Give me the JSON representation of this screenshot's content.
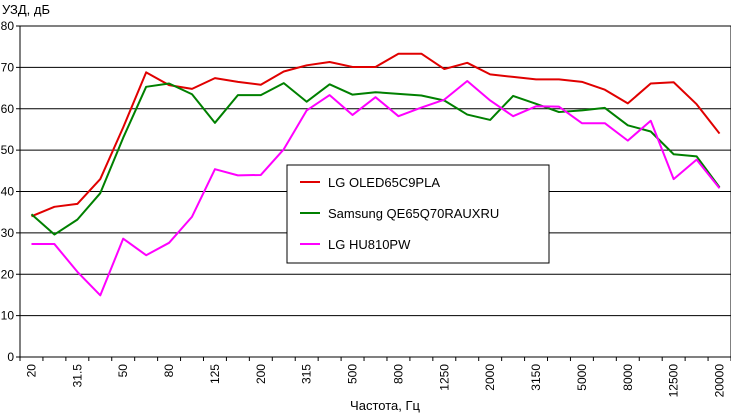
{
  "chart_data": {
    "type": "line",
    "ylabel": "УЗД, дБ",
    "xlabel": "Частота, Гц",
    "ylim": [
      0,
      80
    ],
    "y_ticks": [
      0,
      10,
      20,
      30,
      40,
      50,
      60,
      70,
      80
    ],
    "grid": "horizontal",
    "legend_position": "center",
    "x_tick_labels": [
      "20",
      "31.5",
      "50",
      "80",
      "125",
      "200",
      "315",
      "500",
      "800",
      "1250",
      "2000",
      "3150",
      "5000",
      "8000",
      "12500",
      "20000"
    ],
    "x_values": [
      20,
      25,
      31.5,
      40,
      50,
      63,
      80,
      100,
      125,
      160,
      200,
      250,
      315,
      400,
      500,
      630,
      800,
      1000,
      1250,
      1600,
      2000,
      2500,
      3150,
      4000,
      5000,
      6300,
      8000,
      10000,
      12500,
      16000,
      20000
    ],
    "series": [
      {
        "name": "LG OLED65C9PLA",
        "color": "#e00000",
        "values": [
          34,
          36.3,
          37,
          43,
          55.5,
          68.8,
          65.7,
          64.8,
          67.4,
          66.5,
          65.8,
          69,
          70.5,
          71.3,
          70.1,
          70.1,
          73.3,
          73.3,
          69.6,
          71.1,
          68.3,
          67.7,
          67.1,
          67.1,
          66.5,
          64.6,
          61.3,
          66.1,
          66.4,
          61.1,
          54
        ]
      },
      {
        "name": "Samsung QE65Q70RAUXRU",
        "color": "#008000",
        "values": [
          34.5,
          29.6,
          33.2,
          39.6,
          53,
          65.3,
          66.1,
          63.5,
          56.6,
          63.3,
          63.3,
          66.2,
          61.7,
          65.9,
          63.4,
          64,
          63.6,
          63.2,
          62,
          58.6,
          57.3,
          63.1,
          61.2,
          59.2,
          59.6,
          60.2,
          56,
          54.5,
          49,
          48.5,
          41
        ]
      },
      {
        "name": "LG HU810PW",
        "color": "#ff00ff",
        "values": [
          27.3,
          27.3,
          20.6,
          14.9,
          28.6,
          24.6,
          27.6,
          33.9,
          45.4,
          43.9,
          44,
          50.2,
          59.6,
          63.3,
          58.5,
          62.8,
          58.2,
          60.3,
          62.2,
          66.7,
          62,
          58.2,
          60.6,
          60.5,
          56.5,
          56.5,
          52.3,
          57.1,
          43,
          47.7,
          40.8
        ]
      }
    ]
  }
}
